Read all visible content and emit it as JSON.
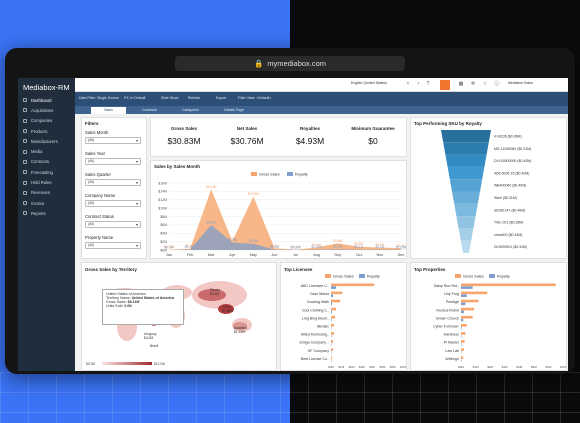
{
  "browser": {
    "url": "mymediabox.com"
  },
  "app": {
    "name": "Mediabox-RM"
  },
  "sidebar": {
    "items": [
      {
        "label": "Dashboard",
        "active": true
      },
      {
        "label": "Acquisitions"
      },
      {
        "label": "Companies"
      },
      {
        "label": "Products"
      },
      {
        "label": "Manufacturers"
      },
      {
        "label": "Media"
      },
      {
        "label": "Contracts"
      },
      {
        "label": "Forecasting"
      },
      {
        "label": "Hold Rules"
      },
      {
        "label": "Revenues"
      },
      {
        "label": "Invoice"
      },
      {
        "label": "Reports"
      }
    ]
  },
  "topbar": {
    "company": "English (United States)",
    "user": "Mediabox Sales"
  },
  "toolbar": {
    "date_filter": "Date Filter: Single Source",
    "fx": "FX: In Default",
    "slide_show": "Slide Show",
    "refresh": "Refresh",
    "export": "Export",
    "view": "Filter View: <Default>"
  },
  "tabs": [
    "Sales",
    "Contracts",
    "Categories",
    "Details Page"
  ],
  "filters": {
    "title": "Filters",
    "fields": [
      {
        "label": "Sales Month",
        "value": "(All)"
      },
      {
        "label": "Sales Year",
        "value": "(All)"
      },
      {
        "label": "Sales Quarter",
        "value": "(All)"
      },
      {
        "label": "Company Name",
        "value": "(All)"
      },
      {
        "label": "Contract Status",
        "value": "(All)"
      },
      {
        "label": "Property Name",
        "value": "(All)"
      }
    ]
  },
  "kpis": [
    {
      "label": "Gross Sales",
      "value": "$30.83M"
    },
    {
      "label": "Net Sales",
      "value": "$30.76M"
    },
    {
      "label": "Royalties",
      "value": "$4.93M"
    },
    {
      "label": "Minimum Guarantee",
      "value": "$0"
    }
  ],
  "colors": {
    "gross": "#f6a56c",
    "royalty": "#7f9ecb",
    "funnel": "#4b9fd1"
  },
  "chart_data": [
    {
      "type": "area",
      "title": "Sales by Sales Month",
      "legend": [
        "Gross Sales",
        "Royalty"
      ],
      "categories": [
        "Jan",
        "Feb",
        "Mar",
        "Apr",
        "May",
        "Jun",
        "Jul",
        "Aug",
        "Sep",
        "Oct",
        "Nov",
        "Dec"
      ],
      "yticks": [
        "$0M",
        "$2M",
        "$4M",
        "$6M",
        "$8M",
        "$10M",
        "$12M",
        "$14M",
        "$16M"
      ],
      "series": [
        {
          "name": "Gross Sales",
          "values": [
            0.1,
            0.3,
            14.5,
            2.1,
            12.8,
            0.4,
            0.1,
            0.6,
            1.6,
            0.8,
            0.6,
            0.4
          ],
          "labels": [
            "$0.10M",
            "$0.3M",
            "$14.5M",
            "$2.1M",
            "$12.8M",
            "$0.4M",
            "$0.1M",
            "$0.6M",
            "$1.6M",
            "$0.8M",
            "$0.6M",
            "$0.4M"
          ]
        },
        {
          "name": "Royalty",
          "values": [
            0.0,
            0.1,
            6.0,
            1.8,
            1.5,
            0.1,
            0.02,
            0.1,
            0.2,
            0.1,
            0.1,
            0.05
          ],
          "labels": [
            "$0.0M",
            "$0.10M",
            "$6.0M",
            "$1.8M",
            "$1.5M",
            "$0.1M",
            "$0.02M",
            "$0.10M",
            "$0.2M",
            "$0.1M",
            "$0.1M",
            "$0.05M"
          ]
        }
      ]
    },
    {
      "type": "bar",
      "title": "Top Performing SKU by Royalty",
      "categories": [
        "4-43236",
        "MD-12",
        "DVL",
        "4D6",
        "WB",
        "Steel",
        "SE",
        "TWL",
        "cdna",
        "DL"
      ],
      "labels": [
        "4:43236 ($0.36M)",
        "MD-12250080 ($0.31M)",
        "DVL00000000 ($0.40M)",
        "4D6-0005-15 ($0.40M)",
        "WB400040 ($0.40M)",
        "Steel ($0.31M)",
        "SE081247 ($0.46M)",
        "TWL-001 ($0.35M)",
        "cdna400 ($0.34M)",
        "DL9000001 ($0.34M)"
      ]
    },
    {
      "type": "bar",
      "title": "Top Licensee",
      "legend": [
        "Gross Sales",
        "Royalty"
      ],
      "categories": [
        "ABC Licensee C..",
        "Case Mania",
        "Cooking Math",
        "Cool Clothing C..",
        "Ling Bing Electr..",
        "Illenatic",
        "Allied Technolog..",
        "Emigo Company ..",
        "GF Company",
        "Best License Co.."
      ],
      "gross": [
        4.2,
        1.1,
        0.9,
        0.5,
        0.4,
        0.3,
        0.3,
        0.2,
        0.2,
        0.1
      ],
      "royalty": [
        0.5,
        0.2,
        0.1,
        0.1,
        0.05,
        0.04,
        0.04,
        0.03,
        0.02,
        0.01
      ],
      "xticks": [
        "$0M",
        "$1M",
        "$2M",
        "$3M",
        "$4M",
        "$5M",
        "$6M",
        "$7M"
      ]
    },
    {
      "type": "bar",
      "title": "Top Properties",
      "legend": [
        "Gross Sales",
        "Royalty"
      ],
      "categories": [
        "Daisy Run Ret..",
        "Lilly Frog",
        "Prestige",
        "Ruckus Robot",
        "Brown Church",
        "Cyber Formula+",
        "Hardness",
        "Pi Master",
        "Law Lab",
        "Wellingo"
      ],
      "gross": [
        6.5,
        1.8,
        1.2,
        0.9,
        0.8,
        0.4,
        0.3,
        0.25,
        0.2,
        0.15
      ],
      "royalty": [
        0.8,
        0.4,
        0.3,
        0.2,
        0.15,
        0.05,
        0.04,
        0.04,
        0.03,
        0.02
      ],
      "xticks": [
        "$0M",
        "$1M",
        "$2M",
        "$3M",
        "$4M",
        "$5M",
        "$6M",
        "$7M"
      ]
    }
  ],
  "territory": {
    "title": "Gross Sales by Territory",
    "tooltip": {
      "country": "United States of America",
      "territory_label": "Territory Name:",
      "territory": "United States of America",
      "gross_label": "Gross Sales:",
      "gross": "$8.11M",
      "units_label": "Units Sold:",
      "units": "0.0K"
    },
    "labels": [
      "Russia\n$3.4M",
      "China\n$7.68M",
      "Australia\n$1.12M",
      "Uruguay\n$4.0M",
      "Brazil"
    ],
    "scale": [
      "$0.0M",
      "$12.0M"
    ]
  }
}
